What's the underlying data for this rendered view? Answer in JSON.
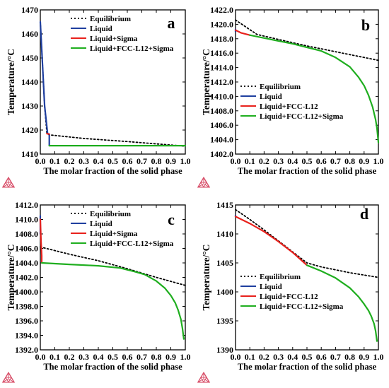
{
  "figure": {
    "colors": {
      "equilibrium": "#000000",
      "liquid": "#1f3f9f",
      "sigma_red": "#e8211c",
      "fcc_red": "#e8211c",
      "green": "#1fae1f",
      "logo": "#d8506a"
    },
    "logo_icon": "thermo-calc-triangle-icon"
  },
  "chart_data": [
    {
      "panel_label": "a",
      "type": "line",
      "xlabel": "The molar fraction of the solid phase",
      "ylabel": "Temperature/°C",
      "xlim": [
        0,
        1
      ],
      "ylim": [
        1410,
        1470
      ],
      "xticks": [
        "0.0",
        "0.1",
        "0.2",
        "0.3",
        "0.4",
        "0.5",
        "0.6",
        "0.7",
        "0.8",
        "0.9",
        "1.0"
      ],
      "yticks": [
        "1410",
        "1420",
        "1430",
        "1440",
        "1450",
        "1460",
        "1470"
      ],
      "legend": [
        "Equilibrium",
        "Liquid",
        "Liquid+Sigma",
        "Liquid+FCC-L12+Sigma"
      ],
      "series": [
        {
          "name": "Equilibrium",
          "style": "dotted",
          "color": "#000000",
          "x": [
            0,
            0.03,
            0.045,
            0.06,
            0.3,
            0.6,
            1.0
          ],
          "y": [
            1465,
            1430,
            1419,
            1418.0,
            1416.5,
            1415.2,
            1413.3
          ]
        },
        {
          "name": "Liquid",
          "style": "solid",
          "color": "#1f3f9f",
          "x": [
            0,
            0.03,
            0.05,
            0.062,
            0.062
          ],
          "y": [
            1465,
            1430,
            1418.5,
            1418.3,
            1413.5
          ]
        },
        {
          "name": "Liquid+Sigma",
          "style": "solid",
          "color": "#e8211c",
          "x": [
            0.045,
            0.062
          ],
          "y": [
            1418.5,
            1418.3
          ]
        },
        {
          "name": "Liquid+FCC-L12+Sigma",
          "style": "solid",
          "color": "#1fae1f",
          "x": [
            0.062,
            0.3,
            0.6,
            1.0
          ],
          "y": [
            1413.5,
            1413.5,
            1413.5,
            1413.5
          ]
        }
      ]
    },
    {
      "panel_label": "b",
      "type": "line",
      "xlabel": "The molar fraction of the solid phase",
      "ylabel": "Temperature/°C",
      "xlim": [
        0,
        1
      ],
      "ylim": [
        1402,
        1422
      ],
      "xticks": [
        "0.0",
        "0.1",
        "0.2",
        "0.3",
        "0.4",
        "0.5",
        "0.6",
        "0.7",
        "0.8",
        "0.9",
        "1.0"
      ],
      "yticks": [
        "1402.0",
        "1404.0",
        "1406.0",
        "1408.0",
        "1410.0",
        "1412.0",
        "1414.0",
        "1416.0",
        "1418.0",
        "1420.0",
        "1422.0"
      ],
      "legend": [
        "Equilibrium",
        "Liquid",
        "Liquid+FCC-L12",
        "Liquid+FCC-L12+Sigma"
      ],
      "series": [
        {
          "name": "Equilibrium",
          "style": "dotted",
          "color": "#000000",
          "x": [
            0,
            0.15,
            0.3,
            0.5,
            0.7,
            0.85,
            1.0
          ],
          "y": [
            1420.6,
            1418.6,
            1417.9,
            1417.0,
            1416.2,
            1415.6,
            1415.0
          ]
        },
        {
          "name": "Liquid",
          "style": "solid",
          "color": "#1f3f9f",
          "x": [
            0,
            0
          ],
          "y": [
            1419.3,
            1419.0
          ]
        },
        {
          "name": "Liquid+FCC-L12",
          "style": "solid",
          "color": "#e8211c",
          "x": [
            0,
            0.04,
            0.1
          ],
          "y": [
            1419.2,
            1418.8,
            1418.5
          ]
        },
        {
          "name": "Liquid+FCC-L12+Sigma",
          "style": "solid",
          "color": "#1fae1f",
          "x": [
            0.1,
            0.2,
            0.3,
            0.4,
            0.5,
            0.6,
            0.7,
            0.8,
            0.86,
            0.9,
            0.93,
            0.96,
            0.98,
            0.99,
            1.0
          ],
          "y": [
            1418.5,
            1418.1,
            1417.7,
            1417.3,
            1416.8,
            1416.3,
            1415.4,
            1414.1,
            1412.7,
            1411.5,
            1410.2,
            1408.5,
            1406.8,
            1405.6,
            1403.6
          ]
        }
      ]
    },
    {
      "panel_label": "c",
      "type": "line",
      "xlabel": "The molar fraction of the solid phase",
      "ylabel": "Temperature/°C",
      "xlim": [
        0,
        1
      ],
      "ylim": [
        1392,
        1412
      ],
      "xticks": [
        "0.0",
        "0.1",
        "0.2",
        "0.3",
        "0.4",
        "0.5",
        "0.6",
        "0.7",
        "0.8",
        "0.9",
        "1.0"
      ],
      "yticks": [
        "1392.0",
        "1394.0",
        "1396.0",
        "1398.0",
        "1400.0",
        "1402.0",
        "1404.0",
        "1406.0",
        "1408.0",
        "1410.0",
        "1412.0"
      ],
      "legend": [
        "Equilibrium",
        "Liquid",
        "Liquid+Sigma",
        "Liquid+FCC-L12+Sigma"
      ],
      "series": [
        {
          "name": "Equilibrium",
          "style": "dotted",
          "color": "#000000",
          "x": [
            0,
            0.2,
            0.4,
            0.6,
            0.8,
            1.0
          ],
          "y": [
            1406.2,
            1405.2,
            1404.3,
            1403.2,
            1402.0,
            1400.9
          ]
        },
        {
          "name": "Liquid",
          "style": "solid",
          "color": "#1f3f9f",
          "x": [
            0,
            0
          ],
          "y": [
            1410.5,
            1408.0
          ]
        },
        {
          "name": "Liquid+Sigma",
          "style": "solid",
          "color": "#e8211c",
          "x": [
            0,
            0.005,
            0.01,
            0.01
          ],
          "y": [
            1410.0,
            1407.0,
            1405.0,
            1404.0
          ]
        },
        {
          "name": "Liquid+FCC-L12+Sigma",
          "style": "solid",
          "color": "#1fae1f",
          "x": [
            0.01,
            0.2,
            0.4,
            0.55,
            0.65,
            0.72,
            0.8,
            0.86,
            0.9,
            0.93,
            0.95,
            0.97,
            0.98,
            0.99
          ],
          "y": [
            1404.0,
            1403.8,
            1403.6,
            1403.3,
            1402.8,
            1402.4,
            1401.5,
            1400.5,
            1399.5,
            1398.5,
            1397.5,
            1396.2,
            1395.0,
            1393.5
          ]
        }
      ]
    },
    {
      "panel_label": "d",
      "type": "line",
      "xlabel": "The molar fraction of the solid phase",
      "ylabel": "Temperature/°C",
      "xlim": [
        0,
        1
      ],
      "ylim": [
        1390,
        1415
      ],
      "xticks": [
        "0.0",
        "0.1",
        "0.2",
        "0.3",
        "0.4",
        "0.5",
        "0.6",
        "0.7",
        "0.8",
        "0.9",
        "1.0"
      ],
      "yticks": [
        "1390",
        "1395",
        "1400",
        "1405",
        "1410",
        "1415"
      ],
      "legend": [
        "Equilibrium",
        "Liquid",
        "Liquid+FCC-L12",
        "Liquid+FCC-L12+Sigma"
      ],
      "series": [
        {
          "name": "Equilibrium",
          "style": "dotted",
          "color": "#000000",
          "x": [
            0,
            0.1,
            0.2,
            0.3,
            0.4,
            0.5,
            0.6,
            0.7,
            0.8,
            0.9,
            1.0
          ],
          "y": [
            1414.2,
            1412.5,
            1410.7,
            1408.8,
            1406.9,
            1405.0,
            1404.3,
            1403.8,
            1403.3,
            1402.9,
            1402.5
          ]
        },
        {
          "name": "Liquid",
          "style": "solid",
          "color": "#1f3f9f",
          "x": [
            0,
            0
          ],
          "y": [
            1413.2,
            1413.0
          ]
        },
        {
          "name": "Liquid+FCC-L12",
          "style": "solid",
          "color": "#e8211c",
          "x": [
            0,
            0.1,
            0.2,
            0.3,
            0.4,
            0.5
          ],
          "y": [
            1413.0,
            1411.8,
            1410.4,
            1408.7,
            1406.8,
            1404.6
          ]
        },
        {
          "name": "Liquid+FCC-L12+Sigma",
          "style": "solid",
          "color": "#1fae1f",
          "x": [
            0.5,
            0.6,
            0.7,
            0.8,
            0.86,
            0.9,
            0.93,
            0.95,
            0.97,
            0.98,
            0.99
          ],
          "y": [
            1404.6,
            1403.6,
            1402.4,
            1400.7,
            1399.2,
            1397.9,
            1396.8,
            1395.8,
            1394.5,
            1393.3,
            1391.5
          ]
        }
      ]
    }
  ]
}
